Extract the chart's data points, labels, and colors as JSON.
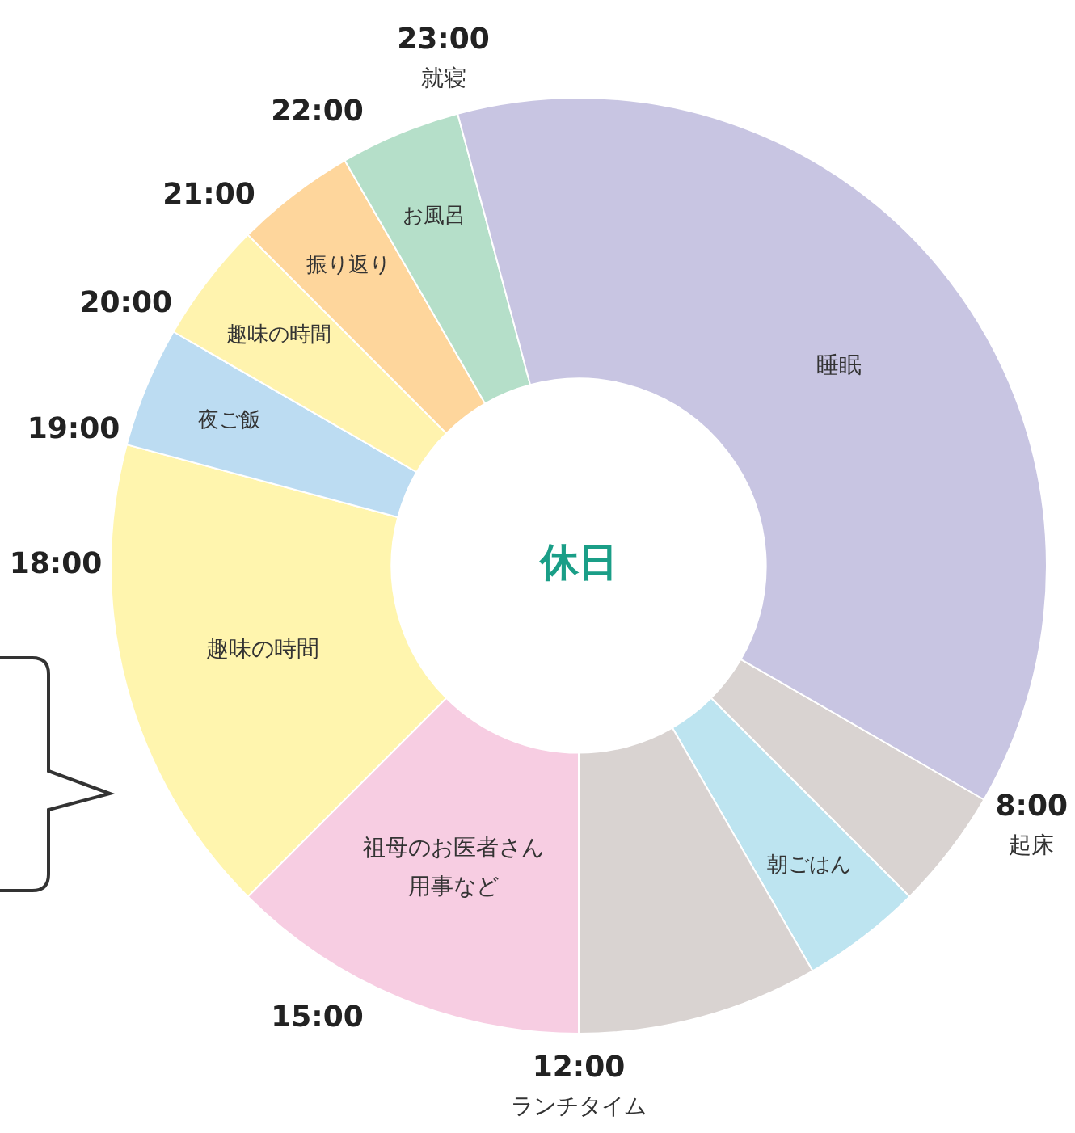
{
  "chart_data": {
    "type": "donut",
    "title": "休日",
    "categories": [
      null,
      "朝ごはん",
      null,
      "祖母のお医者さん用事など",
      "趣味の時間",
      "夜ご飯",
      "趣味の時間",
      "振り返り",
      "お風呂",
      "睡眠"
    ],
    "values": [
      4.167,
      4.167,
      8.333,
      12.5,
      16.667,
      4.167,
      4.167,
      4.167,
      4.167,
      37.5
    ],
    "colors": [
      "#d9d3d1",
      "#bde4f0",
      "#d9d3d1",
      "#f7cde2",
      "#fff5ae",
      "#bcdcf2",
      "#fff3ae",
      "#fed69c",
      "#b5dfc9",
      "#c8c5e2"
    ],
    "annotations": [
      "8:00\n起床",
      "12:00\nランチタイム",
      "15:00",
      "18:00",
      "19:00",
      "20:00",
      "21:00",
      "22:00",
      "23:00\n就寝"
    ],
    "legend": false
  }
}
